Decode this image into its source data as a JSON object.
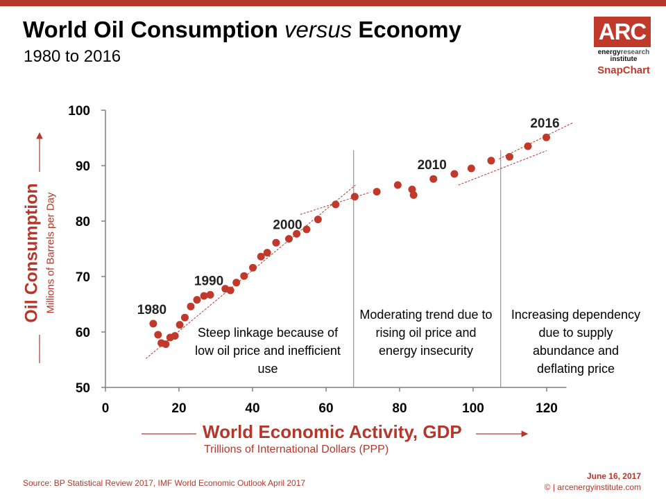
{
  "header": {
    "title_part1": "World Oil Consumption ",
    "title_italic": "versus",
    "title_part2": " Economy",
    "subtitle": "1980 to 2016"
  },
  "logo": {
    "mark": "ARC",
    "line1_a": "energy",
    "line1_b": "research",
    "line2": "institute",
    "tag": "SnapChart"
  },
  "colors": {
    "accent": "#b5362a",
    "point": "#c0392b",
    "divider": "#808080"
  },
  "chart_data": {
    "type": "scatter",
    "title": "World Oil Consumption versus Economy",
    "subtitle": "1980 to 2016",
    "xlabel": "World Economic Activity, GDP",
    "xlabel_sub": "Trillions of International Dollars (PPP)",
    "ylabel": "Oil Consumption",
    "ylabel_sub": "Millions of Barrels per Day",
    "xlim": [
      0,
      125
    ],
    "ylim": [
      50,
      100
    ],
    "xticks": [
      "0",
      "20",
      "40",
      "60",
      "80",
      "100",
      "120"
    ],
    "yticks": [
      "50",
      "60",
      "70",
      "80",
      "90",
      "100"
    ],
    "points": [
      {
        "x": 13.0,
        "y": 61.5
      },
      {
        "x": 14.3,
        "y": 59.5
      },
      {
        "x": 15.2,
        "y": 58.0
      },
      {
        "x": 16.4,
        "y": 57.8
      },
      {
        "x": 17.6,
        "y": 59.0
      },
      {
        "x": 18.9,
        "y": 59.3
      },
      {
        "x": 20.2,
        "y": 61.3
      },
      {
        "x": 21.6,
        "y": 62.6
      },
      {
        "x": 23.2,
        "y": 64.6
      },
      {
        "x": 24.9,
        "y": 65.8
      },
      {
        "x": 26.8,
        "y": 66.5
      },
      {
        "x": 28.5,
        "y": 66.7
      },
      {
        "x": 32.6,
        "y": 67.8
      },
      {
        "x": 34.0,
        "y": 67.5
      },
      {
        "x": 35.6,
        "y": 68.9
      },
      {
        "x": 37.7,
        "y": 70.1
      },
      {
        "x": 40.1,
        "y": 71.6
      },
      {
        "x": 42.3,
        "y": 73.6
      },
      {
        "x": 44.0,
        "y": 74.3
      },
      {
        "x": 46.4,
        "y": 76.1
      },
      {
        "x": 49.9,
        "y": 76.8
      },
      {
        "x": 52.0,
        "y": 77.7
      },
      {
        "x": 54.7,
        "y": 78.5
      },
      {
        "x": 57.8,
        "y": 80.3
      },
      {
        "x": 62.6,
        "y": 83.0
      },
      {
        "x": 67.8,
        "y": 84.4
      },
      {
        "x": 73.8,
        "y": 85.3
      },
      {
        "x": 79.5,
        "y": 86.5
      },
      {
        "x": 83.4,
        "y": 85.7
      },
      {
        "x": 83.8,
        "y": 84.7
      },
      {
        "x": 89.2,
        "y": 87.6
      },
      {
        "x": 94.9,
        "y": 88.5
      },
      {
        "x": 99.5,
        "y": 89.5
      },
      {
        "x": 104.9,
        "y": 90.9
      },
      {
        "x": 109.9,
        "y": 91.6
      },
      {
        "x": 114.9,
        "y": 93.5
      },
      {
        "x": 119.9,
        "y": 95.1
      }
    ],
    "year_labels": [
      {
        "text": "1980",
        "x": 13.0,
        "y": 61.5
      },
      {
        "text": "1990",
        "x": 28.5,
        "y": 66.7
      },
      {
        "text": "2000",
        "x": 49.9,
        "y": 76.8
      },
      {
        "text": "2010",
        "x": 89.2,
        "y": 87.6
      },
      {
        "text": "2016",
        "x": 119.9,
        "y": 95.1
      }
    ],
    "trend_lines": [
      {
        "from": [
          11,
          55.2
        ],
        "to": [
          68,
          86.5
        ]
      },
      {
        "from": [
          53,
          81.2
        ],
        "to": [
          72,
          85.2
        ]
      },
      {
        "from": [
          96,
          86.5
        ],
        "to": [
          120,
          92.7
        ]
      },
      {
        "from": [
          107,
          91.2
        ],
        "to": [
          127,
          97.7
        ]
      }
    ],
    "dividers": [
      67.5,
      107.5
    ],
    "regions": [
      {
        "text": "Steep linkage because of low oil price and inefficient use"
      },
      {
        "text": "Moderating trend due to rising oil price and energy insecurity"
      },
      {
        "text": "Increasing dependency due to supply abundance and deflating price"
      }
    ]
  },
  "footer": {
    "source": "Source: BP Statistical Review 2017, IMF World Economic Outlook April 2017",
    "date": "June 16, 2017",
    "site": "© | arcenergyinstitute.com"
  }
}
